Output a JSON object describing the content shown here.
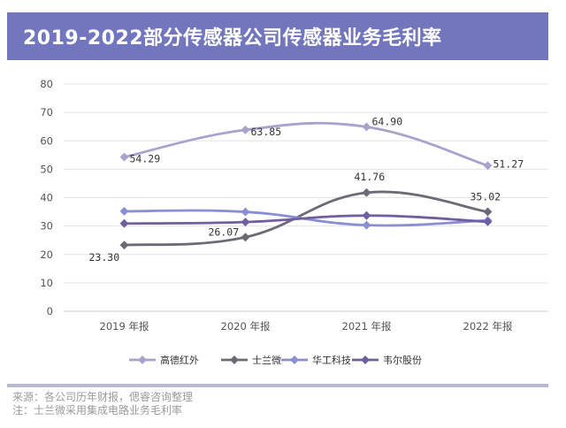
{
  "header": {
    "title": "2019-2022部分传感器公司传感器业务毛利率"
  },
  "chart_data": {
    "type": "line",
    "categories": [
      "2019 年报",
      "2020 年报",
      "2021 年报",
      "2022 年报"
    ],
    "ylim": [
      0,
      80
    ],
    "yticks": [
      0,
      10,
      20,
      30,
      40,
      50,
      60,
      70,
      80
    ],
    "grid": "horizontal",
    "legend_position": "bottom",
    "series": [
      {
        "name": "高德红外",
        "color": "#a7a3cc",
        "values": [
          54.29,
          63.85,
          64.9,
          51.27
        ],
        "labels": [
          "54.29",
          "63.85",
          "64.90",
          "51.27"
        ]
      },
      {
        "name": "士兰微",
        "color": "#6d6a78",
        "values": [
          23.3,
          26.07,
          41.76,
          35.02
        ],
        "labels": [
          "23.30",
          "26.07",
          "41.76",
          "35.02"
        ]
      },
      {
        "name": "华工科技",
        "color": "#8a8ed4",
        "values": [
          35.2,
          35.0,
          30.3,
          32.0
        ],
        "labels": []
      },
      {
        "name": "韦尔股份",
        "color": "#6f5f9e",
        "values": [
          30.9,
          31.4,
          33.7,
          31.5
        ],
        "labels": []
      }
    ]
  },
  "footer": {
    "source": "来源：各公司历年财报，偲睿咨询整理",
    "note": "注：士兰微采用集成电路业务毛利率"
  }
}
